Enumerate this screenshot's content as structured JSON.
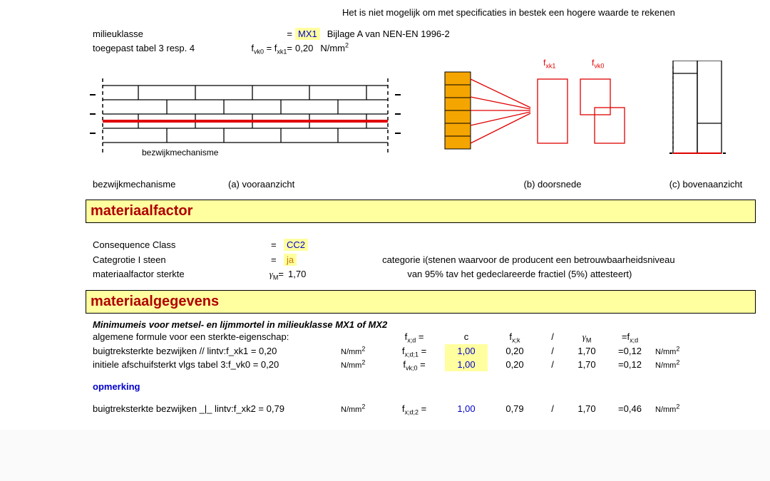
{
  "top_note": "Het is niet mogelijk om met specificaties in bestek een hogere waarde te rekenen",
  "milieu": {
    "label": "milieuklasse",
    "eq": "=",
    "val": "MX1",
    "note": "Bijlage A van NEN-EN 1996-2"
  },
  "tabel34": {
    "label": "toegepast tabel 3 resp. 4",
    "eq_html": "f<sub>vk0</sub> = f<sub>xk1</sub>=",
    "val": "0,20",
    "unit_html": "N/mm<sup>2</sup>"
  },
  "fxk1": "f<sub>xk1</sub>",
  "fvk0": "f<sub>vk0</sub>",
  "bezw_caption": "bezwijkmechanisme",
  "views": {
    "bez": "bezwijkmechanisme",
    "a": "(a) vooraanzicht",
    "b": "(b) doorsnede",
    "c": "(c) bovenaanzicht"
  },
  "sec_mat_factor": "materiaalfactor",
  "cc": {
    "label": "Consequence Class",
    "eq": "=",
    "val": "CC2"
  },
  "cat": {
    "label_html": "Categrotie I steen",
    "eq": "=",
    "val": "ja",
    "note1": "categorie i(stenen waarvoor de producent een betrouwbaarheidsniveau",
    "note2": "van 95% tav het gedeclareerde fractiel (5%) attesteert)"
  },
  "mfs": {
    "label": "materiaalfactor sterkte",
    "sym_html": "<span class='greek'>γ</span><sub>M</sub>=",
    "val": "1,70"
  },
  "sec_mat_geg": "materiaalgegevens",
  "mg_subtitle": "Minimumeis voor metsel- en lijmmortel in milieuklasse MX1 of MX2",
  "hdr": {
    "a": "algemene formule voor een sterkte-eigenschap:",
    "fxd": "f<sub>x;d</sub> =",
    "c": "c",
    "fxk": "f<sub>x;k</sub>",
    "slash": "/",
    "gM": "<span class='greek'>γ</span><sub>M</sub>",
    "eq": "=f<sub>x;d</sub>"
  },
  "row1": {
    "a": "buigtreksterkte bezwijken // lintv:f_xk1 = 0,20",
    "u1": "N/mm<sup>2</sup>",
    "sym": "f<sub>x;d;1</sub> =",
    "c": "1,00",
    "fxk": "0,20",
    "slash": "/",
    "gM": "1,70",
    "res": "=0,12",
    "u2": "N/mm<sup>2</sup>"
  },
  "row2": {
    "a": "initiele afschuifsterkt vlgs tabel 3:f_vk0 =  0,20",
    "u1": "N/mm<sup>2</sup>",
    "sym": "f<sub>vk;0</sub> =",
    "c": "1,00",
    "fxk": "0,20",
    "slash": "/",
    "gM": "1,70",
    "res": "=0,12",
    "u2": "N/mm<sup>2</sup>"
  },
  "opmerking": "opmerking",
  "row3": {
    "a": "buigtreksterkte bezwijken _|_ lintv:f_xk2 =    0,79",
    "u1": "N/mm<sup>2</sup>",
    "sym": "f<sub>x;d;2</sub> =",
    "c": "1,00",
    "fxk": "0,79",
    "slash": "/",
    "gM": "1,70",
    "res": "=0,46",
    "u2": "N/mm<sup>2</sup>"
  },
  "diagram": {
    "brick_fill": "#f5a500",
    "red": "#e00000"
  }
}
